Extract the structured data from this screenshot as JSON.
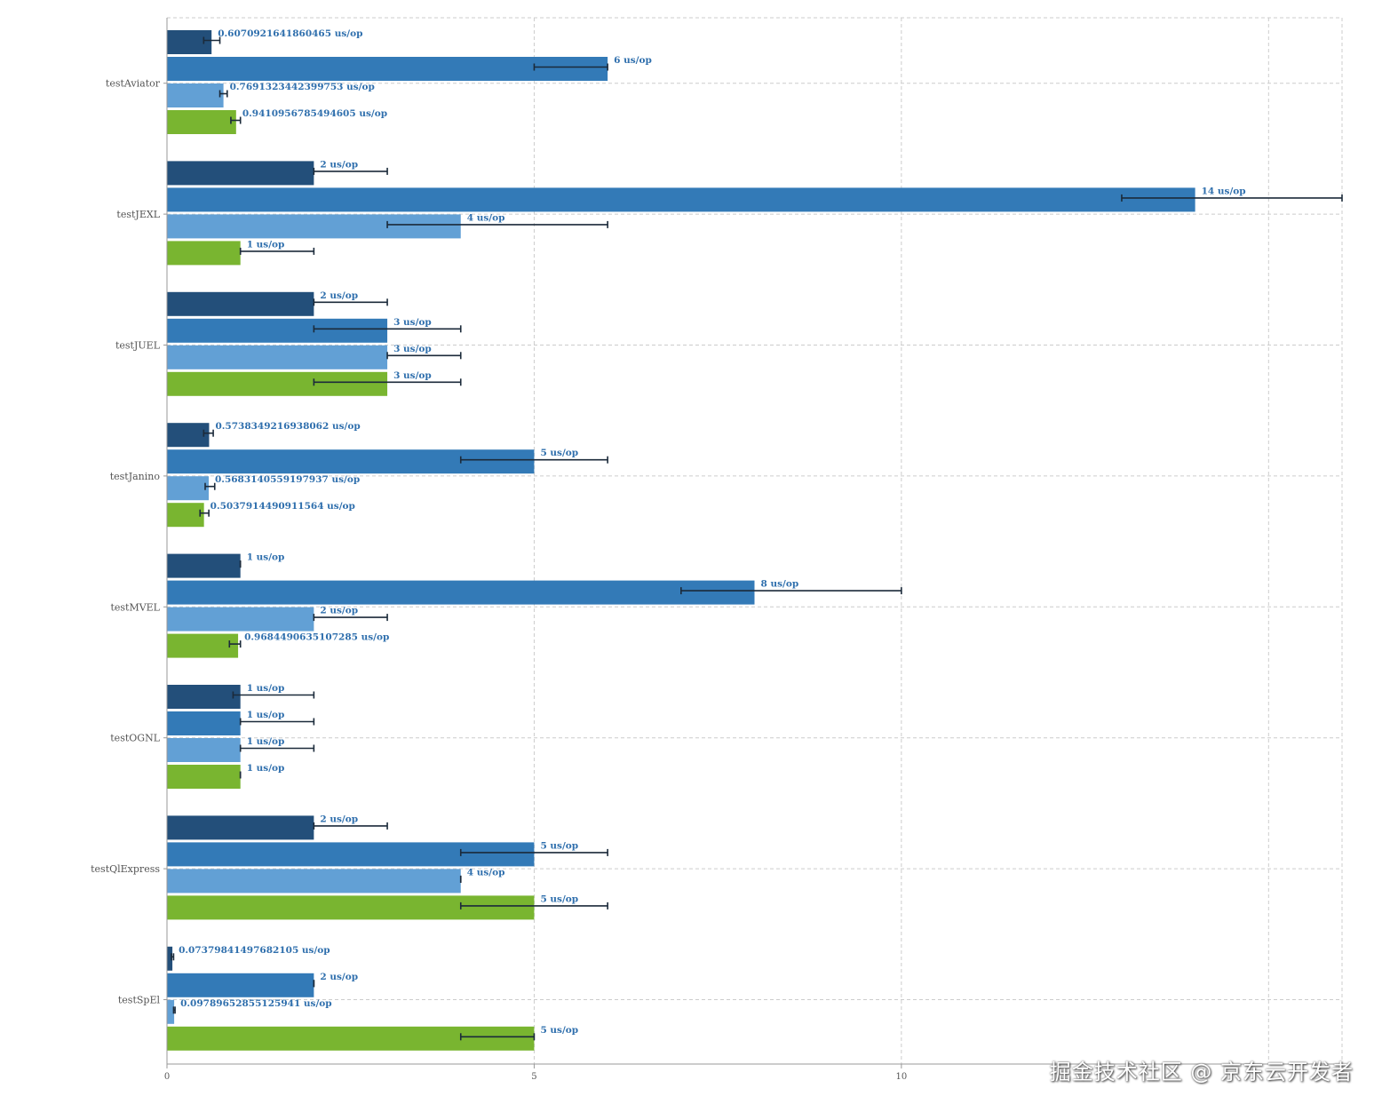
{
  "chart_data": {
    "type": "bar",
    "orientation": "horizontal",
    "categories": [
      "testAviator",
      "testJEXL",
      "testJUEL",
      "testJanino",
      "testMVEL",
      "testOGNL",
      "testQlExpress",
      "testSpEl"
    ],
    "series": [
      {
        "color": "#234f7a",
        "values": [
          0.6070921641860465,
          2,
          2,
          0.5738349216938062,
          1,
          1,
          2,
          0.07379841497682105
        ],
        "labels": [
          "0.6070921641860465 us/op",
          "2 us/op",
          "2 us/op",
          "0.5738349216938062 us/op",
          "1 us/op",
          "1 us/op",
          "2 us/op",
          "0.07379841497682105 us/op"
        ],
        "err_low": [
          0.5,
          2,
          2,
          0.5,
          1,
          0.9,
          2,
          0.06
        ],
        "err_high": [
          0.72,
          3,
          3,
          0.63,
          1,
          2,
          3,
          0.09
        ]
      },
      {
        "color": "#337ab7",
        "values": [
          6,
          14,
          3,
          5,
          8,
          1,
          5,
          2
        ],
        "labels": [
          "6 us/op",
          "14 us/op",
          "3 us/op",
          "5 us/op",
          "8 us/op",
          "1 us/op",
          "5 us/op",
          "2 us/op"
        ],
        "err_low": [
          5,
          13,
          2,
          4,
          7,
          1,
          4,
          2
        ],
        "err_high": [
          6,
          16,
          4,
          6,
          10,
          2,
          6,
          2
        ]
      },
      {
        "color": "#62a0d5",
        "values": [
          0.7691323442399753,
          4,
          3,
          0.5683140559197937,
          2,
          1,
          4,
          0.09789652855125941
        ],
        "labels": [
          "0.7691323442399753 us/op",
          "4 us/op",
          "3 us/op",
          "0.5683140559197937 us/op",
          "2 us/op",
          "1 us/op",
          "4 us/op",
          "0.09789652855125941 us/op"
        ],
        "err_low": [
          0.72,
          3,
          3,
          0.52,
          2,
          1,
          4,
          0.09
        ],
        "err_high": [
          0.82,
          6,
          4,
          0.65,
          3,
          2,
          4,
          0.11
        ]
      },
      {
        "color": "#79b530",
        "values": [
          0.9410956785494605,
          1,
          3,
          0.5037914490911564,
          0.9684490635107285,
          1,
          5,
          5
        ],
        "labels": [
          "0.9410956785494605 us/op",
          "1 us/op",
          "3 us/op",
          "0.5037914490911564 us/op",
          "0.9684490635107285 us/op",
          "1 us/op",
          "5 us/op",
          "5 us/op"
        ],
        "err_low": [
          0.87,
          1,
          2,
          0.45,
          0.85,
          1,
          4,
          4
        ],
        "err_high": [
          1.0,
          2,
          4,
          0.57,
          1.0,
          1,
          6,
          5
        ]
      }
    ],
    "xlim": [
      0,
      16
    ],
    "x_ticks": [
      0,
      5,
      10
    ],
    "grid": true,
    "title": "",
    "xlabel": "",
    "ylabel": ""
  },
  "watermark": "掘金技术社区 @ 京东云开发者"
}
